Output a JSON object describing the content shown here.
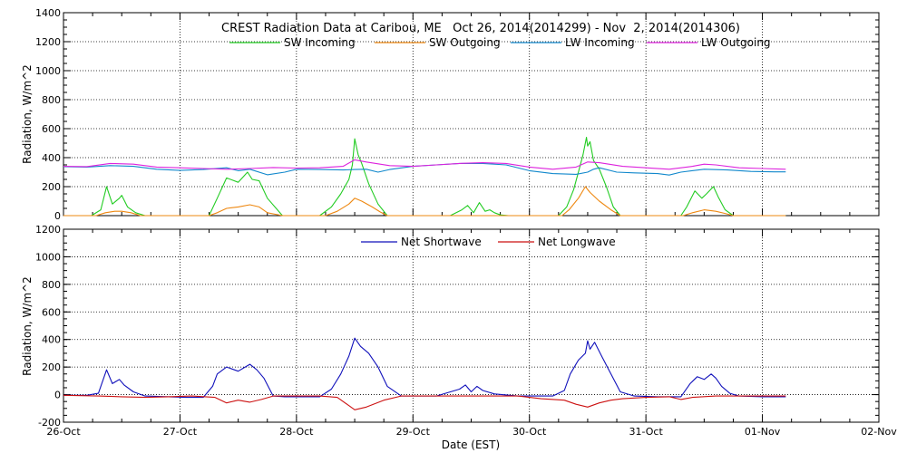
{
  "chart_data": [
    {
      "type": "line",
      "title": "CREST Radiation Data at Caribou, ME   Oct 26, 2014(2014299) - Nov  2, 2014(2014306)",
      "xlabel": "",
      "ylabel": "Radiation, W/m^2",
      "xlim": [
        0,
        7
      ],
      "ylim": [
        0,
        1400
      ],
      "yticks": [
        0,
        200,
        400,
        600,
        800,
        1000,
        1200,
        1400
      ],
      "grid": "dotted",
      "legend_position": "top",
      "series": [
        {
          "name": "SW Incoming",
          "color": "#22cc22",
          "x": [
            0,
            0.24,
            0.32,
            0.37,
            0.42,
            0.48,
            0.5,
            0.55,
            0.62,
            0.7,
            1.05,
            1.25,
            1.32,
            1.4,
            1.5,
            1.58,
            1.62,
            1.68,
            1.75,
            1.88,
            2.05,
            2.2,
            2.3,
            2.38,
            2.45,
            2.48,
            2.5,
            2.53,
            2.56,
            2.62,
            2.7,
            2.78,
            3.32,
            3.42,
            3.47,
            3.52,
            3.57,
            3.62,
            3.66,
            3.7,
            3.75,
            3.82,
            3.9,
            4.1,
            4.25,
            4.32,
            4.38,
            4.42,
            4.46,
            4.49,
            4.5,
            4.52,
            4.55,
            4.6,
            4.66,
            4.72,
            4.78,
            5.1,
            5.3,
            5.35,
            5.42,
            5.48,
            5.52,
            5.58,
            5.62,
            5.68,
            5.75,
            6.2
          ],
          "values": [
            0,
            0,
            40,
            200,
            80,
            120,
            140,
            60,
            20,
            0,
            0,
            0,
            120,
            260,
            230,
            300,
            250,
            240,
            120,
            0,
            0,
            0,
            60,
            150,
            250,
            350,
            530,
            420,
            360,
            220,
            80,
            0,
            0,
            40,
            70,
            20,
            90,
            30,
            40,
            20,
            5,
            0,
            0,
            0,
            0,
            60,
            180,
            300,
            420,
            540,
            480,
            510,
            380,
            320,
            200,
            60,
            0,
            0,
            0,
            60,
            170,
            120,
            150,
            200,
            130,
            40,
            0,
            0
          ]
        },
        {
          "name": "SW Outgoing",
          "color": "#ee8811",
          "x": [
            0,
            0.28,
            0.36,
            0.44,
            0.5,
            0.58,
            0.66,
            1.25,
            1.32,
            1.4,
            1.5,
            1.6,
            1.68,
            1.75,
            1.88,
            2.25,
            2.35,
            2.45,
            2.5,
            2.56,
            2.65,
            2.72,
            2.78,
            4.28,
            4.34,
            4.42,
            4.48,
            4.52,
            4.6,
            4.7,
            4.78,
            5.32,
            5.4,
            5.5,
            5.6,
            5.68,
            5.75,
            6.2
          ],
          "values": [
            0,
            0,
            20,
            30,
            30,
            20,
            0,
            0,
            20,
            50,
            60,
            75,
            60,
            20,
            0,
            0,
            30,
            80,
            120,
            100,
            60,
            25,
            0,
            0,
            40,
            120,
            200,
            160,
            100,
            40,
            0,
            0,
            20,
            40,
            30,
            15,
            0,
            0
          ]
        },
        {
          "name": "LW Incoming",
          "color": "#1188cc",
          "x": [
            0,
            0.2,
            0.4,
            0.6,
            0.8,
            1.0,
            1.2,
            1.4,
            1.5,
            1.6,
            1.75,
            1.9,
            2.0,
            2.2,
            2.4,
            2.5,
            2.6,
            2.7,
            2.8,
            3.0,
            3.2,
            3.4,
            3.6,
            3.8,
            4.0,
            4.2,
            4.4,
            4.5,
            4.55,
            4.6,
            4.75,
            4.9,
            5.1,
            5.2,
            5.3,
            5.5,
            5.7,
            5.9,
            6.1,
            6.2
          ],
          "values": [
            338,
            335,
            345,
            340,
            320,
            312,
            318,
            330,
            310,
            320,
            282,
            300,
            320,
            318,
            315,
            318,
            320,
            300,
            318,
            340,
            350,
            360,
            360,
            350,
            310,
            290,
            285,
            300,
            320,
            330,
            300,
            295,
            290,
            280,
            300,
            320,
            315,
            305,
            302,
            302
          ]
        },
        {
          "name": "LW Outgoing",
          "color": "#dd22dd",
          "x": [
            0,
            0.2,
            0.4,
            0.6,
            0.8,
            1.0,
            1.2,
            1.4,
            1.6,
            1.8,
            2.0,
            2.2,
            2.4,
            2.5,
            2.6,
            2.8,
            3.0,
            3.2,
            3.4,
            3.6,
            3.8,
            4.0,
            4.2,
            4.4,
            4.5,
            4.6,
            4.8,
            5.0,
            5.2,
            5.4,
            5.5,
            5.6,
            5.8,
            6.0,
            6.2
          ],
          "values": [
            340,
            338,
            360,
            355,
            335,
            330,
            325,
            320,
            325,
            332,
            328,
            330,
            340,
            385,
            370,
            345,
            340,
            350,
            360,
            365,
            360,
            335,
            320,
            335,
            370,
            365,
            340,
            330,
            320,
            340,
            355,
            350,
            330,
            325,
            320
          ]
        }
      ]
    },
    {
      "type": "line",
      "title": "",
      "xlabel": "Date (EST)",
      "ylabel": "Radiation, W/m^2",
      "xlim": [
        0,
        7
      ],
      "ylim": [
        -200,
        1200
      ],
      "yticks": [
        -200,
        0,
        200,
        400,
        600,
        800,
        1000,
        1200
      ],
      "categories": [
        "26-Oct",
        "27-Oct",
        "28-Oct",
        "29-Oct",
        "30-Oct",
        "31-Oct",
        "01-Nov",
        "02-Nov"
      ],
      "grid": "dotted",
      "legend_position": "top",
      "series": [
        {
          "name": "Net Shortwave",
          "color": "#1111bb",
          "x": [
            0,
            0.2,
            0.3,
            0.37,
            0.42,
            0.48,
            0.52,
            0.6,
            0.7,
            0.9,
            1.05,
            1.2,
            1.28,
            1.32,
            1.4,
            1.5,
            1.56,
            1.6,
            1.66,
            1.72,
            1.8,
            1.9,
            2.2,
            2.3,
            2.38,
            2.45,
            2.5,
            2.55,
            2.62,
            2.7,
            2.78,
            2.9,
            3.2,
            3.4,
            3.45,
            3.5,
            3.55,
            3.6,
            3.7,
            3.9,
            4.2,
            4.3,
            4.35,
            4.42,
            4.48,
            4.5,
            4.52,
            4.56,
            4.62,
            4.7,
            4.78,
            4.9,
            5.1,
            5.3,
            5.38,
            5.44,
            5.5,
            5.56,
            5.6,
            5.65,
            5.72,
            5.8,
            6.0,
            6.2
          ],
          "values": [
            -5,
            -5,
            10,
            180,
            80,
            110,
            70,
            20,
            -10,
            -15,
            -20,
            -20,
            60,
            150,
            200,
            170,
            200,
            220,
            180,
            120,
            -10,
            -15,
            -15,
            40,
            150,
            280,
            410,
            350,
            300,
            200,
            60,
            -10,
            -10,
            40,
            70,
            20,
            60,
            30,
            5,
            -10,
            -10,
            30,
            150,
            250,
            300,
            390,
            330,
            380,
            280,
            150,
            20,
            -10,
            -15,
            -15,
            80,
            130,
            110,
            150,
            120,
            60,
            10,
            -10,
            -15,
            -15
          ]
        },
        {
          "name": "Net Longwave",
          "color": "#cc1111",
          "x": [
            0,
            0.3,
            0.5,
            0.7,
            0.9,
            1.1,
            1.3,
            1.4,
            1.5,
            1.6,
            1.7,
            1.8,
            2.0,
            2.2,
            2.35,
            2.45,
            2.5,
            2.6,
            2.75,
            2.9,
            3.1,
            3.3,
            3.5,
            3.7,
            3.9,
            4.1,
            4.3,
            4.4,
            4.5,
            4.6,
            4.7,
            4.8,
            5.0,
            5.2,
            5.3,
            5.4,
            5.6,
            5.8,
            6.0,
            6.2
          ],
          "values": [
            -5,
            -10,
            -15,
            -20,
            -15,
            -10,
            -20,
            -60,
            -40,
            -55,
            -35,
            -10,
            -10,
            -10,
            -20,
            -80,
            -110,
            -90,
            -40,
            -10,
            -10,
            -10,
            -10,
            -10,
            -10,
            -30,
            -40,
            -70,
            -90,
            -60,
            -40,
            -30,
            -20,
            -15,
            -35,
            -20,
            -10,
            -10,
            -10,
            -10
          ]
        }
      ]
    }
  ]
}
